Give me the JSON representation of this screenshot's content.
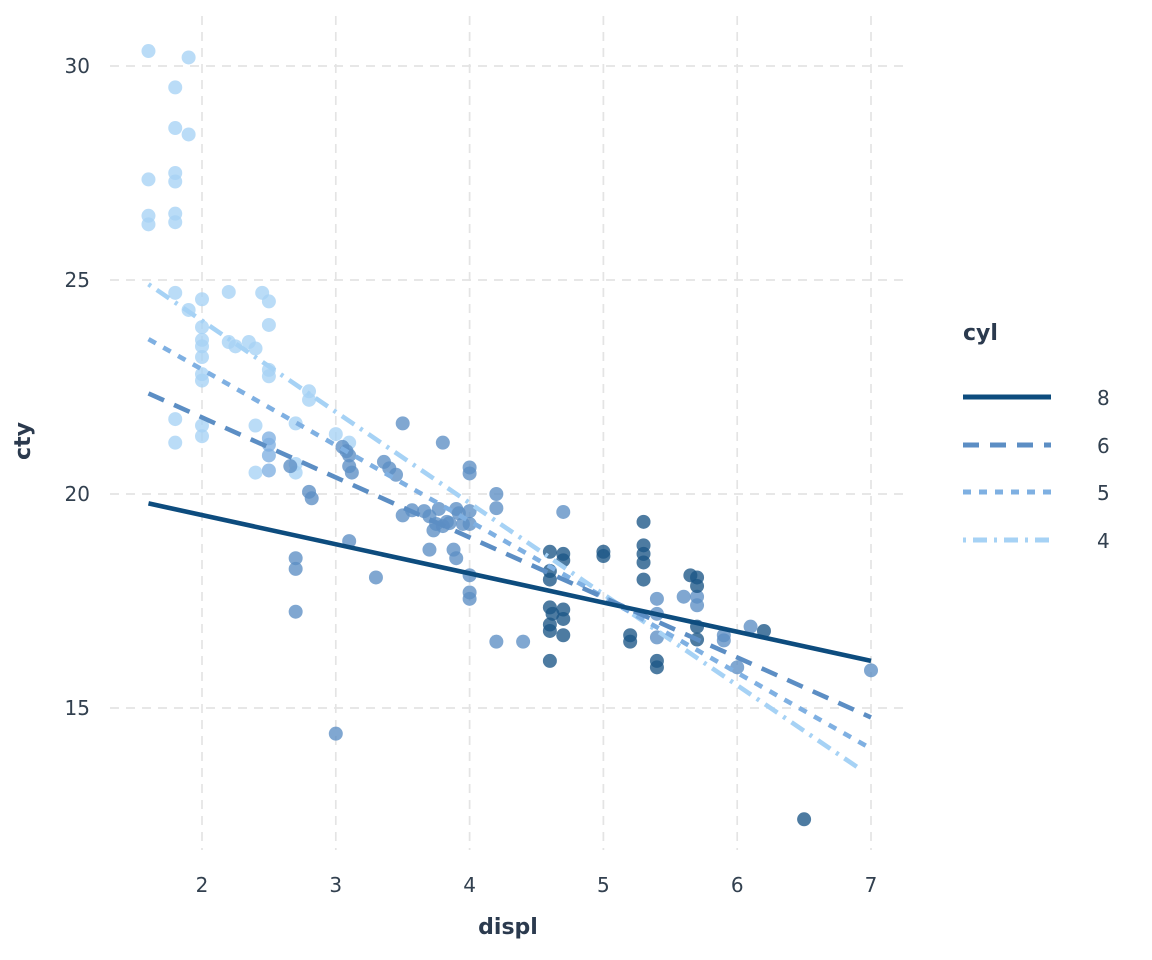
{
  "chart_data": {
    "type": "scatter",
    "title": "",
    "xlabel": "displ",
    "ylabel": "cty",
    "x_ticks": [
      2,
      3,
      4,
      5,
      6,
      7
    ],
    "y_ticks": [
      15,
      20,
      25,
      30
    ],
    "xlim": [
      1.55,
      7.26
    ],
    "ylim": [
      11.9,
      30.9
    ],
    "grid": true,
    "grid_color": "#e4e4e4",
    "text_color": "#32404f",
    "title_color": "#2b3a4e",
    "legend": {
      "title": "cyl",
      "position": "right",
      "entries": [
        "8",
        "6",
        "5",
        "4"
      ]
    },
    "series": [
      {
        "name": "8",
        "line_color": "#0d4c7e",
        "point_color": "#1b5687",
        "linetype": "solid",
        "dash": "",
        "legend_dash": "",
        "trend": {
          "x1": 1.6,
          "y1": 19.78,
          "x2": 7.0,
          "y2": 16.1
        },
        "points": [
          [
            4.6,
            18.65
          ],
          [
            4.7,
            18.6
          ],
          [
            4.7,
            18.45
          ],
          [
            4.6,
            18.2
          ],
          [
            4.6,
            18.0
          ],
          [
            4.6,
            17.35
          ],
          [
            4.62,
            17.2
          ],
          [
            4.6,
            16.95
          ],
          [
            4.7,
            17.3
          ],
          [
            4.7,
            17.08
          ],
          [
            4.6,
            16.8
          ],
          [
            4.7,
            16.7
          ],
          [
            4.6,
            16.1
          ],
          [
            5.0,
            18.65
          ],
          [
            5.0,
            18.55
          ],
          [
            5.3,
            19.35
          ],
          [
            5.3,
            18.8
          ],
          [
            5.3,
            18.6
          ],
          [
            5.3,
            18.4
          ],
          [
            5.3,
            18.0
          ],
          [
            5.2,
            16.7
          ],
          [
            5.2,
            16.55
          ],
          [
            5.4,
            16.1
          ],
          [
            5.4,
            15.95
          ],
          [
            5.65,
            18.1
          ],
          [
            5.7,
            18.05
          ],
          [
            5.7,
            17.85
          ],
          [
            5.7,
            16.9
          ],
          [
            5.7,
            16.6
          ],
          [
            6.2,
            16.8
          ],
          [
            6.5,
            12.4
          ]
        ]
      },
      {
        "name": "6",
        "line_color": "#5c8ec4",
        "point_color": "#5c8ec4",
        "linetype": "dashed",
        "dash": "17 11",
        "legend_dash": "16 11",
        "trend": {
          "x1": 1.6,
          "y1": 22.35,
          "x2": 7.0,
          "y2": 14.78
        },
        "points": [
          [
            2.66,
            20.65
          ],
          [
            2.8,
            20.05
          ],
          [
            2.82,
            19.9
          ],
          [
            2.7,
            18.5
          ],
          [
            2.7,
            18.25
          ],
          [
            2.7,
            17.25
          ],
          [
            3.1,
            18.9
          ],
          [
            3.3,
            18.05
          ],
          [
            3.0,
            14.4
          ],
          [
            3.05,
            21.1
          ],
          [
            3.08,
            21.0
          ],
          [
            3.1,
            20.9
          ],
          [
            3.1,
            20.65
          ],
          [
            3.12,
            20.5
          ],
          [
            3.36,
            20.75
          ],
          [
            3.4,
            20.6
          ],
          [
            3.45,
            20.45
          ],
          [
            3.5,
            21.65
          ],
          [
            3.8,
            21.2
          ],
          [
            3.5,
            19.5
          ],
          [
            3.57,
            19.62
          ],
          [
            3.66,
            19.6
          ],
          [
            3.7,
            19.48
          ],
          [
            3.77,
            19.65
          ],
          [
            3.8,
            19.25
          ],
          [
            3.83,
            19.35
          ],
          [
            3.9,
            19.65
          ],
          [
            3.92,
            19.55
          ],
          [
            3.95,
            19.3
          ],
          [
            3.85,
            19.32
          ],
          [
            3.75,
            19.3
          ],
          [
            3.73,
            19.15
          ],
          [
            4.0,
            20.62
          ],
          [
            4.0,
            20.48
          ],
          [
            4.2,
            20.0
          ],
          [
            4.2,
            19.67
          ],
          [
            4.0,
            19.6
          ],
          [
            4.0,
            19.3
          ],
          [
            4.7,
            19.58
          ],
          [
            4.0,
            18.1
          ],
          [
            4.0,
            17.7
          ],
          [
            4.0,
            17.55
          ],
          [
            3.7,
            18.7
          ],
          [
            3.88,
            18.7
          ],
          [
            3.9,
            18.5
          ],
          [
            4.2,
            16.55
          ],
          [
            4.4,
            16.55
          ],
          [
            5.4,
            17.55
          ],
          [
            5.4,
            17.2
          ],
          [
            5.4,
            16.65
          ],
          [
            5.6,
            17.6
          ],
          [
            5.7,
            17.6
          ],
          [
            5.7,
            17.4
          ],
          [
            5.9,
            16.7
          ],
          [
            5.9,
            16.58
          ],
          [
            6.1,
            16.9
          ],
          [
            6.0,
            15.95
          ],
          [
            7.0,
            15.88
          ]
        ]
      },
      {
        "name": "5",
        "line_color": "#7fb0e2",
        "point_color": "#7fb0e2",
        "linetype": "dotted",
        "dash": "8.5 8.5",
        "legend_dash": "8 8",
        "trend": {
          "x1": 1.6,
          "y1": 23.62,
          "x2": 7.0,
          "y2": 14.05
        },
        "points": [
          [
            2.5,
            21.3
          ],
          [
            2.5,
            21.15
          ],
          [
            2.5,
            20.9
          ],
          [
            2.5,
            20.55
          ]
        ]
      },
      {
        "name": "4",
        "line_color": "#a6d2f5",
        "point_color": "#a6d2f5",
        "linetype": "dotdash",
        "dash": "3 7 15 7",
        "legend_dash": "3 7 14 7",
        "trend": {
          "x1": 1.6,
          "y1": 24.9,
          "x2": 6.93,
          "y2": 13.55
        },
        "points": [
          [
            1.6,
            30.35
          ],
          [
            1.9,
            30.2
          ],
          [
            1.8,
            29.5
          ],
          [
            1.8,
            28.55
          ],
          [
            1.9,
            28.4
          ],
          [
            1.6,
            27.35
          ],
          [
            1.8,
            27.5
          ],
          [
            1.8,
            27.3
          ],
          [
            1.6,
            26.5
          ],
          [
            1.6,
            26.3
          ],
          [
            1.8,
            26.55
          ],
          [
            1.8,
            26.35
          ],
          [
            1.8,
            24.7
          ],
          [
            1.9,
            24.3
          ],
          [
            2.0,
            24.55
          ],
          [
            2.2,
            24.72
          ],
          [
            2.45,
            24.7
          ],
          [
            2.5,
            24.5
          ],
          [
            2.5,
            23.95
          ],
          [
            2.0,
            23.9
          ],
          [
            2.0,
            23.6
          ],
          [
            2.0,
            23.45
          ],
          [
            2.0,
            23.2
          ],
          [
            2.2,
            23.55
          ],
          [
            2.25,
            23.45
          ],
          [
            2.35,
            23.55
          ],
          [
            2.4,
            23.4
          ],
          [
            2.5,
            22.9
          ],
          [
            2.5,
            22.75
          ],
          [
            2.0,
            22.8
          ],
          [
            2.0,
            22.65
          ],
          [
            1.8,
            21.75
          ],
          [
            1.8,
            21.2
          ],
          [
            2.0,
            21.6
          ],
          [
            2.0,
            21.35
          ],
          [
            2.8,
            22.4
          ],
          [
            2.8,
            22.2
          ],
          [
            2.7,
            21.65
          ],
          [
            2.7,
            20.7
          ],
          [
            2.7,
            20.5
          ],
          [
            2.4,
            21.6
          ],
          [
            2.4,
            20.5
          ],
          [
            3.0,
            21.4
          ],
          [
            3.1,
            21.2
          ]
        ]
      }
    ]
  }
}
